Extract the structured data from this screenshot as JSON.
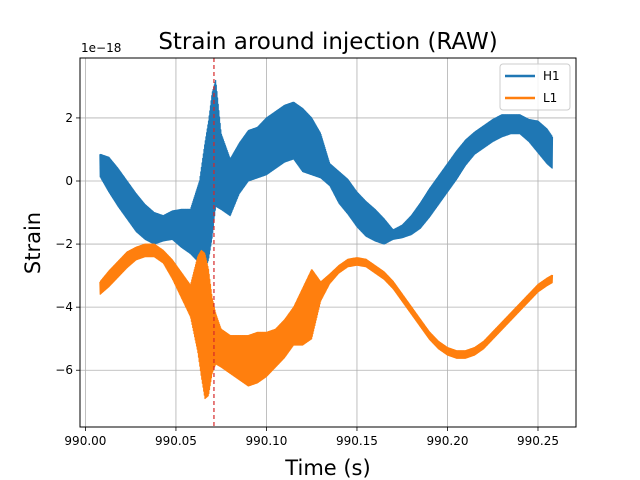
{
  "chart_data": {
    "type": "line",
    "title": "Strain around injection (RAW)",
    "xlabel": "Time (s)",
    "ylabel": "Strain",
    "y_scale_label": "1e−18",
    "xlim": [
      989.997,
      990.271
    ],
    "ylim": [
      -7.8,
      3.9
    ],
    "x_ticks": [
      990.0,
      990.05,
      990.1,
      990.15,
      990.2,
      990.25
    ],
    "x_tick_labels": [
      "990.00",
      "990.05",
      "990.10",
      "990.15",
      "990.20",
      "990.25"
    ],
    "y_ticks": [
      2,
      0,
      -2,
      -4,
      -6
    ],
    "y_tick_labels": [
      "2",
      "0",
      "−2",
      "−4",
      "−6"
    ],
    "grid": true,
    "legend_position": "top-right",
    "injection_marker": {
      "x": 990.071,
      "color": "#d62728",
      "style": "dashed"
    },
    "series": [
      {
        "name": "H1",
        "color": "#1f77b4",
        "x": [
          990.008,
          990.013,
          990.018,
          990.023,
          990.028,
          990.033,
          990.038,
          990.043,
          990.048,
          990.053,
          990.058,
          990.063,
          990.066,
          990.068,
          990.07,
          990.072,
          990.075,
          990.08,
          990.085,
          990.09,
          990.095,
          990.1,
          990.105,
          990.11,
          990.115,
          990.12,
          990.125,
          990.13,
          990.135,
          990.14,
          990.145,
          990.15,
          990.155,
          990.16,
          990.165,
          990.17,
          990.175,
          990.18,
          990.185,
          990.19,
          990.195,
          990.2,
          990.205,
          990.21,
          990.215,
          990.22,
          990.225,
          990.23,
          990.235,
          990.24,
          990.245,
          990.25,
          990.255,
          990.258
        ],
        "center": [
          0.5,
          0.2,
          -0.2,
          -0.6,
          -1.0,
          -1.3,
          -1.5,
          -1.5,
          -1.4,
          -1.5,
          -1.6,
          -1.3,
          -0.8,
          -0.3,
          0.5,
          1.2,
          0.3,
          -0.2,
          0.4,
          0.8,
          0.9,
          1.1,
          1.3,
          1.5,
          1.6,
          1.3,
          1.1,
          0.8,
          0.2,
          -0.2,
          -0.5,
          -0.9,
          -1.2,
          -1.4,
          -1.6,
          -1.7,
          -1.6,
          -1.4,
          -1.1,
          -0.7,
          -0.3,
          0.1,
          0.5,
          0.9,
          1.2,
          1.4,
          1.6,
          1.75,
          1.8,
          1.8,
          1.6,
          1.4,
          1.1,
          0.9
        ],
        "amplitude": [
          0.35,
          0.55,
          0.6,
          0.6,
          0.6,
          0.55,
          0.5,
          0.4,
          0.45,
          0.6,
          0.7,
          1.3,
          2.0,
          2.2,
          2.3,
          2.0,
          1.2,
          0.9,
          0.8,
          0.8,
          0.8,
          0.9,
          0.9,
          0.9,
          0.9,
          1.0,
          0.9,
          0.7,
          0.35,
          0.5,
          0.55,
          0.55,
          0.55,
          0.5,
          0.4,
          0.15,
          0.2,
          0.3,
          0.4,
          0.45,
          0.45,
          0.45,
          0.45,
          0.4,
          0.35,
          0.35,
          0.35,
          0.35,
          0.3,
          0.3,
          0.35,
          0.5,
          0.55,
          0.5
        ]
      },
      {
        "name": "L1",
        "color": "#ff7f0e",
        "x": [
          990.008,
          990.013,
          990.018,
          990.023,
          990.028,
          990.033,
          990.038,
          990.043,
          990.048,
          990.053,
          990.058,
          990.062,
          990.064,
          990.066,
          990.068,
          990.07,
          990.072,
          990.075,
          990.08,
          990.085,
          990.09,
          990.095,
          990.1,
          990.105,
          990.11,
          990.115,
          990.12,
          990.125,
          990.13,
          990.135,
          990.14,
          990.145,
          990.15,
          990.155,
          990.16,
          990.165,
          990.17,
          990.175,
          990.18,
          990.185,
          990.19,
          990.195,
          990.2,
          990.205,
          990.21,
          990.215,
          990.22,
          990.225,
          990.23,
          990.235,
          990.24,
          990.245,
          990.25,
          990.255,
          990.258
        ],
        "center": [
          -3.4,
          -3.1,
          -2.8,
          -2.5,
          -2.3,
          -2.2,
          -2.2,
          -2.4,
          -2.8,
          -3.3,
          -3.8,
          -3.9,
          -4.2,
          -4.6,
          -4.8,
          -4.9,
          -5.0,
          -5.3,
          -5.5,
          -5.6,
          -5.7,
          -5.6,
          -5.5,
          -5.3,
          -5.0,
          -4.6,
          -4.3,
          -3.9,
          -3.5,
          -3.1,
          -2.8,
          -2.6,
          -2.55,
          -2.6,
          -2.8,
          -3.0,
          -3.3,
          -3.7,
          -4.1,
          -4.5,
          -4.9,
          -5.2,
          -5.4,
          -5.5,
          -5.5,
          -5.4,
          -5.2,
          -4.9,
          -4.6,
          -4.3,
          -4.0,
          -3.7,
          -3.4,
          -3.2,
          -3.1
        ],
        "amplitude": [
          0.2,
          0.25,
          0.25,
          0.25,
          0.2,
          0.2,
          0.2,
          0.2,
          0.3,
          0.4,
          0.5,
          1.5,
          2.0,
          2.3,
          2.0,
          1.2,
          0.8,
          0.6,
          0.6,
          0.7,
          0.8,
          0.8,
          0.7,
          0.6,
          0.6,
          0.6,
          0.9,
          1.1,
          0.3,
          0.15,
          0.12,
          0.12,
          0.12,
          0.12,
          0.12,
          0.12,
          0.12,
          0.12,
          0.12,
          0.12,
          0.12,
          0.12,
          0.12,
          0.12,
          0.12,
          0.12,
          0.12,
          0.12,
          0.12,
          0.12,
          0.12,
          0.12,
          0.12,
          0.12,
          0.12
        ]
      }
    ]
  }
}
